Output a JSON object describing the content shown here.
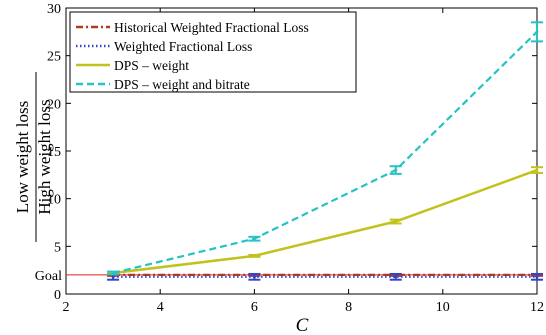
{
  "chart_data": {
    "type": "line",
    "xlabel": "C",
    "ylabel": {
      "numerator": "Low weight loss",
      "denominator": "High weight loss"
    },
    "xlim": [
      2,
      12
    ],
    "ylim": [
      0,
      30
    ],
    "x_ticks": [
      "2",
      "4",
      "6",
      "8",
      "10",
      "12"
    ],
    "y_ticks": [
      "0",
      "5",
      "10",
      "15",
      "20",
      "25",
      "30"
    ],
    "goal": {
      "label": "Goal",
      "value": 2.0,
      "color": "#dd2222"
    },
    "grid": false,
    "legend_position": "top-left",
    "series": [
      {
        "name": "Historical Weighted Fractional Loss",
        "style": "dashdot",
        "color": "#b03a1a",
        "x": [
          3,
          6,
          9,
          12
        ],
        "y": [
          2.0,
          2.0,
          2.0,
          2.0
        ],
        "err": [
          0.1,
          0.1,
          0.1,
          0.1
        ]
      },
      {
        "name": "Weighted Fractional Loss",
        "style": "dotted",
        "color": "#3344cc",
        "x": [
          3,
          6,
          9,
          12
        ],
        "y": [
          1.8,
          1.8,
          1.8,
          1.8
        ],
        "err": [
          0.3,
          0.3,
          0.3,
          0.3
        ]
      },
      {
        "name": "DPS – weight",
        "style": "solid",
        "color": "#c2c21e",
        "x": [
          3,
          6,
          9,
          12
        ],
        "y": [
          2.2,
          4.0,
          7.6,
          13.0
        ],
        "err": [
          0.1,
          0.1,
          0.2,
          0.3
        ]
      },
      {
        "name": "DPS – weight and bitrate",
        "style": "dashed",
        "color": "#27c2c2",
        "x": [
          3,
          6,
          9,
          12
        ],
        "y": [
          2.2,
          5.8,
          13.0,
          27.5
        ],
        "err": [
          0.15,
          0.2,
          0.4,
          1.0
        ]
      }
    ]
  }
}
